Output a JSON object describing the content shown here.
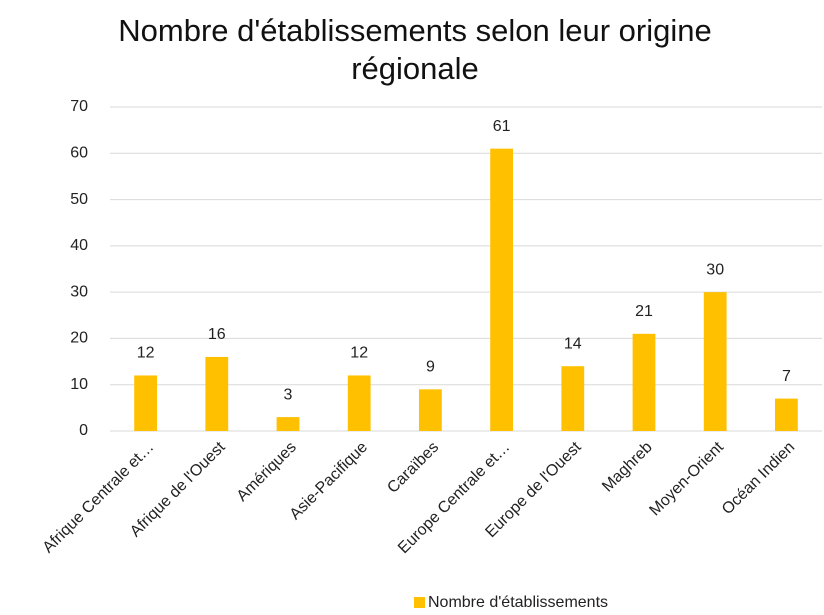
{
  "chart_data": {
    "type": "bar",
    "title": "Nombre d'établissements selon leur origine régionale",
    "categories": [
      "Afrique Centrale et…",
      "Afrique de l'Ouest",
      "Amériques",
      "Asie-Pacifique",
      "Caraïbes",
      "Europe Centrale et…",
      "Europe de l'Ouest",
      "Maghreb",
      "Moyen-Orient",
      "Océan Indien"
    ],
    "series": [
      {
        "name": "Nombre d'établissements",
        "color": "#ffc000",
        "values": [
          12,
          16,
          3,
          12,
          9,
          61,
          14,
          21,
          30,
          7
        ]
      }
    ],
    "ylim": [
      0,
      70
    ],
    "yticks": [
      0,
      10,
      20,
      30,
      40,
      50,
      60,
      70
    ],
    "grid": true,
    "legend": "bottom"
  }
}
